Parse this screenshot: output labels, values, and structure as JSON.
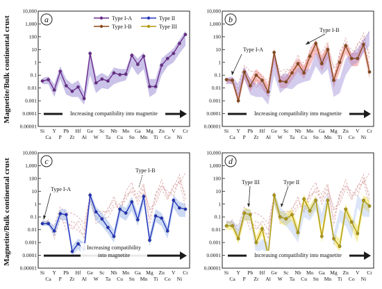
{
  "ylabel": "Magnetite/Bulk continental crust",
  "elements_top": [
    "Si",
    "Y",
    "Pb",
    "Hf",
    "Ge",
    "Sc",
    "Mo",
    "Ga",
    "Mg",
    "Zn",
    "V",
    "Cr"
  ],
  "elements_bottom": [
    "Ca",
    "P",
    "Zr",
    "Al",
    "W",
    "Ta",
    "Nb",
    "Cu",
    "Sn",
    "Mn",
    "Ti",
    "Co",
    "Ni"
  ],
  "yticks": [
    "10,000",
    "1,000",
    "100",
    "10",
    "1",
    "0.1",
    "0.01",
    "0.001",
    "0.0001",
    "0.00001"
  ],
  "colors": {
    "typeIA": "#6a2c8c",
    "typeIB": "#8a4a1a",
    "typeII": "#2233bb",
    "typeIII": "#b09a10",
    "envIA": "#9f8fd6",
    "envIB": "#f08a8a",
    "envII": "#9fb8ea",
    "envIII": "#f2e25a",
    "dashIB": "#d9a0a0",
    "arrow": "#1a1a1a"
  },
  "chart_data": [
    {
      "type": "line",
      "panel": "a",
      "log_scale": true,
      "ylim": [
        1e-05,
        10000
      ],
      "categories": [
        "Si",
        "Ca",
        "Y",
        "P",
        "Pb",
        "Zr",
        "Hf",
        "Al",
        "Ge",
        "W",
        "Sc",
        "Ta",
        "Nb",
        "Cu",
        "Mo",
        "Sn",
        "Ga",
        "Mn",
        "Mg",
        "Ti",
        "Zn",
        "Co",
        "V",
        "Ni",
        "Cr"
      ],
      "legend": [
        "Type I-A",
        "Type I-B",
        "Type II",
        "Type III"
      ],
      "series": [
        {
          "name": "Type I-A",
          "values": [
            0.035,
            0.045,
            0.007,
            0.2,
            0.015,
            0.0055,
            0.012,
            0.0015,
            5,
            0.025,
            0.05,
            0.035,
            0.15,
            0.11,
            0.12,
            3.5,
            0.7,
            3,
            0.013,
            0.013,
            0.6,
            2,
            5,
            30,
            150
          ]
        }
      ],
      "envelope": {
        "low": [
          0.02,
          0.02,
          0.002,
          0.05,
          0.003,
          0.002,
          0.002,
          0.0005,
          0.1,
          0.004,
          0.01,
          0.008,
          0.02,
          0.03,
          0.04,
          0.5,
          0.1,
          0.3,
          0.002,
          0.004,
          0.1,
          0.5,
          1,
          5,
          20
        ],
        "high": [
          0.06,
          0.08,
          0.02,
          0.5,
          0.05,
          0.02,
          0.04,
          0.005,
          10,
          0.08,
          0.15,
          0.08,
          0.4,
          0.3,
          0.3,
          6,
          2,
          6,
          0.05,
          0.05,
          2,
          5,
          12,
          60,
          300
        ]
      },
      "arrow_text": "Increasing compatibility into magnetite"
    },
    {
      "type": "line",
      "panel": "b",
      "log_scale": true,
      "ylim": [
        1e-05,
        10000
      ],
      "categories": [
        "Si",
        "Ca",
        "Y",
        "P",
        "Pb",
        "Zr",
        "Hf",
        "Al",
        "Ge",
        "W",
        "Sc",
        "Ta",
        "Nb",
        "Cu",
        "Mo",
        "Sn",
        "Ga",
        "Mn",
        "Mg",
        "Ti",
        "Zn",
        "Co",
        "V",
        "Ni",
        "Cr"
      ],
      "series": [
        {
          "name": "Type I-B",
          "values": [
            0.045,
            0.04,
            0.001,
            0.18,
            0.015,
            0.1,
            0.04,
            0.005,
            6,
            0.035,
            0.03,
            0.15,
            0.8,
            0.15,
            3,
            30,
            0.8,
            10,
            0.04,
            1,
            20,
            2,
            2,
            25,
            0.18
          ]
        }
      ],
      "envelope": {
        "low": [
          0.03,
          0.02,
          0.0005,
          0.05,
          0.005,
          0.03,
          0.01,
          0.002,
          1,
          0.01,
          0.01,
          0.04,
          0.2,
          0.05,
          0.5,
          5,
          0.2,
          2,
          0.01,
          0.2,
          5,
          0.5,
          0.5,
          8,
          0.05
        ],
        "high": [
          0.06,
          0.06,
          0.003,
          0.4,
          0.05,
          0.3,
          0.1,
          0.02,
          12,
          0.08,
          0.08,
          0.4,
          2,
          0.5,
          8,
          60,
          3,
          25,
          0.1,
          3,
          40,
          5,
          6,
          50,
          0.5
        ]
      },
      "annotations": [
        "Type I-A",
        "Type I-B"
      ],
      "arrow_text": "Increasing compatibility into magnetite"
    },
    {
      "type": "line",
      "panel": "c",
      "log_scale": true,
      "ylim": [
        1e-05,
        10000
      ],
      "categories": [
        "Si",
        "Ca",
        "Y",
        "P",
        "Pb",
        "Zr",
        "Hf",
        "Al",
        "Ge",
        "W",
        "Sc",
        "Ta",
        "Nb",
        "Cu",
        "Mo",
        "Sn",
        "Ga",
        "Mn",
        "Mg",
        "Ti",
        "Zn",
        "Co",
        "V",
        "Ni",
        "Cr"
      ],
      "series": [
        {
          "name": "Type II",
          "values": [
            0.03,
            0.03,
            0.008,
            0.18,
            0.15,
            0.0002,
            0.0008,
            0.0003,
            5,
            0.25,
            0.07,
            0.015,
            0.003,
            0.4,
            0.2,
            1.5,
            0.06,
            4,
            0.0015,
            0.12,
            0.08,
            0.008,
            2,
            0.5,
            0.4
          ]
        }
      ],
      "envelope": {
        "low": [
          0.02,
          0.02,
          0.003,
          0.06,
          0.05,
          0.0001,
          0.0003,
          0.0001,
          1,
          0.05,
          0.02,
          0.005,
          0.001,
          0.1,
          0.05,
          0.3,
          0.02,
          1,
          0.0005,
          0.04,
          0.02,
          0.002,
          0.5,
          0.1,
          0.1
        ],
        "high": [
          0.05,
          0.05,
          0.02,
          0.4,
          0.4,
          0.0006,
          0.002,
          0.001,
          10,
          0.6,
          0.2,
          0.05,
          0.01,
          1,
          0.5,
          4,
          0.2,
          8,
          0.005,
          0.4,
          0.2,
          0.02,
          5,
          1.5,
          1
        ]
      },
      "annotations": [
        "Type I-A",
        "Type I-B"
      ],
      "arrow_text_lines": [
        "Increasing compatibility",
        "into magnetite"
      ]
    },
    {
      "type": "line",
      "panel": "d",
      "log_scale": true,
      "ylim": [
        1e-05,
        10000
      ],
      "categories": [
        "Si",
        "Ca",
        "Y",
        "P",
        "Pb",
        "Zr",
        "Hf",
        "Al",
        "Ge",
        "W",
        "Sc",
        "Ta",
        "Nb",
        "Cu",
        "Mo",
        "Sn",
        "Ga",
        "Mn",
        "Mg",
        "Ti",
        "Zn",
        "Co",
        "V",
        "Ni",
        "Cr"
      ],
      "series": [
        {
          "name": "Type III",
          "values": [
            0.02,
            0.02,
            0.002,
            0.2,
            0.15,
            0.001,
            0.012,
            0.0001,
            5,
            0.1,
            0.07,
            0.15,
            0.006,
            2.5,
            0.3,
            2,
            0.003,
            2,
            0.002,
            0.0005,
            0.4,
            0.04,
            0.005,
            2,
            0.7
          ]
        }
      ],
      "envelope": {
        "low": [
          0.01,
          0.01,
          0.0008,
          0.05,
          0.05,
          0.0004,
          0.004,
          5e-05,
          1,
          0.03,
          0.02,
          0.05,
          0.002,
          0.8,
          0.1,
          0.5,
          0.001,
          0.5,
          0.0008,
          0.0002,
          0.1,
          0.01,
          0.001,
          0.5,
          0.2
        ],
        "high": [
          0.04,
          0.04,
          0.005,
          0.5,
          0.4,
          0.003,
          0.03,
          0.0003,
          10,
          0.3,
          0.2,
          0.4,
          0.02,
          6,
          0.8,
          5,
          0.01,
          5,
          0.005,
          0.002,
          1,
          0.1,
          0.02,
          5,
          2
        ]
      },
      "annotations": [
        "Type III",
        "Type II"
      ],
      "arrow_text": "Increasing compatibility into magnetite"
    }
  ]
}
